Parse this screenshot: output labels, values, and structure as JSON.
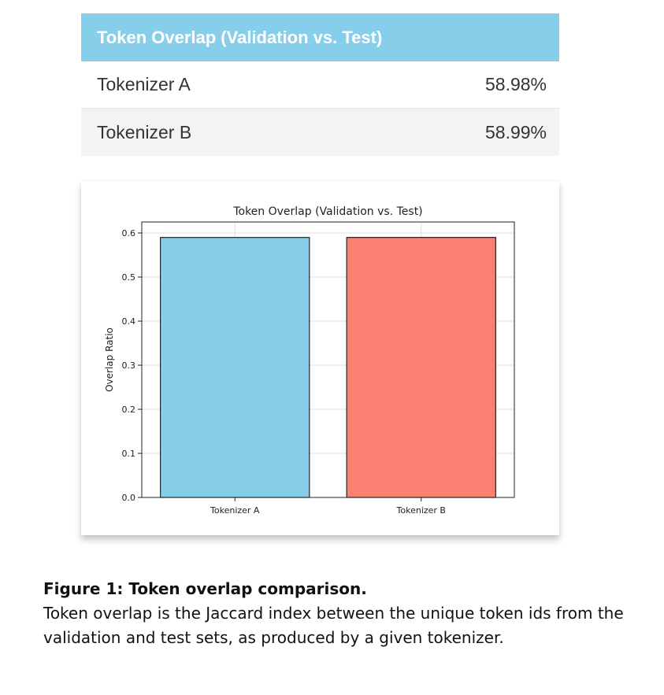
{
  "table": {
    "header": "Token Overlap (Validation vs. Test)",
    "rows": [
      {
        "label": "Tokenizer A",
        "value": "58.98%"
      },
      {
        "label": "Tokenizer B",
        "value": "58.99%"
      }
    ],
    "header_color": "#87ceeb"
  },
  "chart_data": {
    "type": "bar",
    "title": "Token Overlap (Validation vs. Test)",
    "xlabel": "",
    "ylabel": "Overlap Ratio",
    "categories": [
      "Tokenizer A",
      "Tokenizer B"
    ],
    "values": [
      0.5898,
      0.5899
    ],
    "colors": [
      "#87ceeb",
      "#fa8072"
    ],
    "ylim": [
      0,
      0.6
    ],
    "yticks": [
      "0.0",
      "0.1",
      "0.2",
      "0.3",
      "0.4",
      "0.5",
      "0.6"
    ],
    "grid": true,
    "legend": "none"
  },
  "caption": {
    "title": "Figure 1: Token overlap comparison.",
    "body": "Token overlap is the Jaccard index between the unique token ids from the validation and test sets, as produced by a given tokenizer."
  }
}
